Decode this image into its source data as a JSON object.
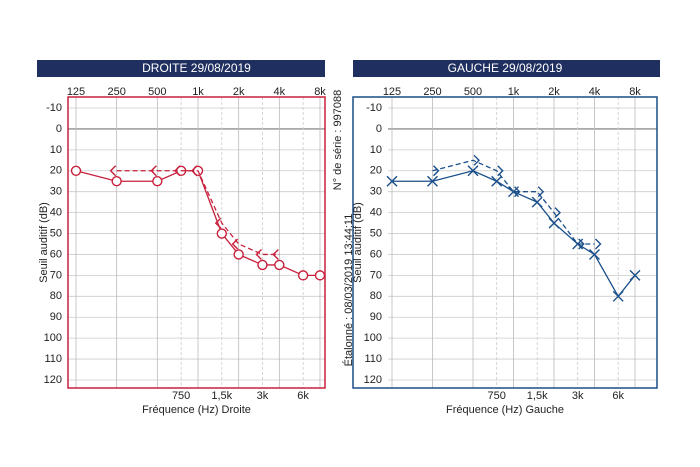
{
  "chart_data": [
    {
      "type": "line",
      "title": "DROITE 29/08/2019",
      "xlabel": "Fréquence (Hz) Droite",
      "ylabel": "Seuil auditif (dB)",
      "color": "#c8203c",
      "log_x": true,
      "grid": true,
      "y_inverted": true,
      "xlim": [
        125,
        8000
      ],
      "ylim": [
        -10,
        120
      ],
      "xticks": [
        125,
        250,
        500,
        {
          "value": 1000,
          "label": "1k"
        },
        {
          "value": 2000,
          "label": "2k"
        },
        {
          "value": 4000,
          "label": "4k"
        },
        {
          "value": 8000,
          "label": "8k"
        }
      ],
      "xticks_bottom": [
        750,
        {
          "value": 1500,
          "label": "1,5k"
        },
        {
          "value": 3000,
          "label": "3k"
        },
        {
          "value": 6000,
          "label": "6k"
        }
      ],
      "yticks": [
        -10,
        0,
        10,
        20,
        30,
        40,
        50,
        60,
        70,
        80,
        90,
        100,
        110,
        120
      ],
      "annotations": [
        "N° de série : 997088",
        "Étalonné : 08/03/2019 13:44:11"
      ],
      "series": [
        {
          "marker": "circle",
          "dash": false,
          "x": [
            125,
            250,
            500,
            750,
            1000,
            1500,
            2000,
            3000,
            4000,
            6000,
            8000
          ],
          "values": [
            20,
            25,
            25,
            20,
            20,
            50,
            60,
            65,
            65,
            70,
            70
          ]
        },
        {
          "marker": "<",
          "dash": true,
          "x": [
            250,
            500,
            750,
            1000,
            1500,
            2000,
            3000,
            4000
          ],
          "values": [
            20,
            20,
            20,
            20,
            45,
            55,
            60,
            60
          ]
        }
      ]
    },
    {
      "type": "line",
      "title": "GAUCHE 29/08/2019",
      "xlabel": "Fréquence (Hz) Gauche",
      "ylabel": "Seuil auditif (dB)",
      "color": "#1a4f8a",
      "log_x": true,
      "grid": true,
      "y_inverted": true,
      "xlim": [
        125,
        8000
      ],
      "ylim": [
        -10,
        120
      ],
      "xticks": [
        125,
        250,
        500,
        {
          "value": 1000,
          "label": "1k"
        },
        {
          "value": 2000,
          "label": "2k"
        },
        {
          "value": 4000,
          "label": "4k"
        },
        {
          "value": 8000,
          "label": "8k"
        }
      ],
      "xticks_bottom": [
        750,
        {
          "value": 1500,
          "label": "1,5k"
        },
        {
          "value": 3000,
          "label": "3k"
        },
        {
          "value": 6000,
          "label": "6k"
        }
      ],
      "yticks": [
        -10,
        0,
        10,
        20,
        30,
        40,
        50,
        60,
        70,
        80,
        90,
        100,
        110,
        120
      ],
      "series": [
        {
          "marker": "x",
          "dash": false,
          "x": [
            125,
            250,
            500,
            750,
            1000,
            1500,
            2000,
            3000,
            4000,
            6000,
            8000
          ],
          "values": [
            25,
            25,
            20,
            25,
            30,
            35,
            45,
            55,
            60,
            80,
            70
          ]
        },
        {
          "marker": ">",
          "dash": true,
          "x": [
            250,
            500,
            750,
            1000,
            1500,
            2000,
            3000,
            4000
          ],
          "values": [
            20,
            15,
            20,
            30,
            30,
            40,
            55,
            55
          ]
        }
      ]
    }
  ]
}
